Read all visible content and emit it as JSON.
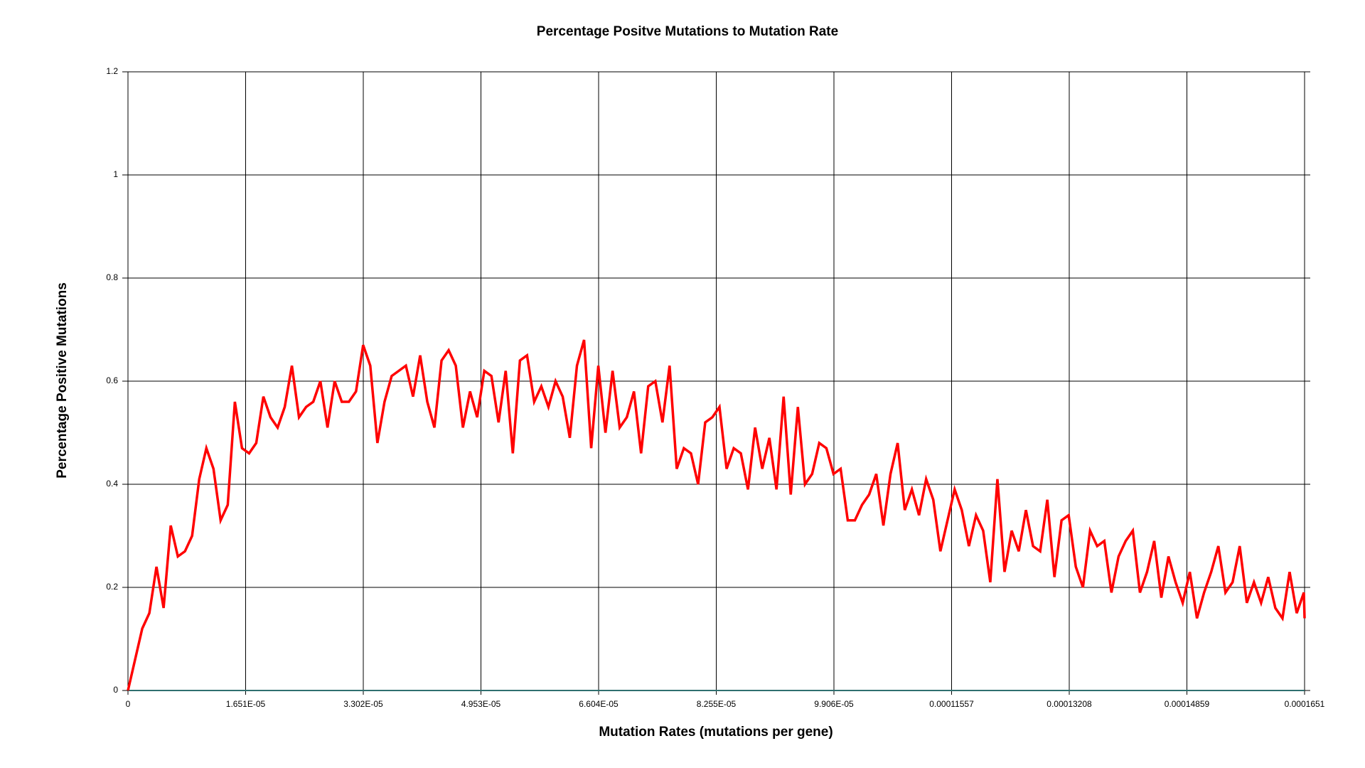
{
  "chart_data": {
    "type": "line",
    "title": "Percentage Positve Mutations to Mutation Rate",
    "x_label": "Mutation Rates (mutations per gene)",
    "y_label": "Percentage Positive Mutations",
    "x": [
      0,
      1e-06,
      2e-06,
      3e-06,
      4e-06,
      5e-06,
      6e-06,
      7e-06,
      8e-06,
      9e-06,
      1e-05,
      1.1e-05,
      1.2e-05,
      1.3e-05,
      1.4e-05,
      1.5e-05,
      1.6e-05,
      1.7e-05,
      1.8e-05,
      1.9e-05,
      2e-05,
      2.1e-05,
      2.2e-05,
      2.3e-05,
      2.4e-05,
      2.5e-05,
      2.6e-05,
      2.7e-05,
      2.8e-05,
      2.9e-05,
      3e-05,
      3.1e-05,
      3.2e-05,
      3.3e-05,
      3.4e-05,
      3.5e-05,
      3.6e-05,
      3.7e-05,
      3.8e-05,
      3.9e-05,
      4e-05,
      4.1e-05,
      4.2e-05,
      4.3e-05,
      4.4e-05,
      4.5e-05,
      4.6e-05,
      4.7e-05,
      4.8e-05,
      4.9e-05,
      5e-05,
      5.1e-05,
      5.2e-05,
      5.3e-05,
      5.4e-05,
      5.5e-05,
      5.6e-05,
      5.7e-05,
      5.8e-05,
      5.9e-05,
      6e-05,
      6.1e-05,
      6.2e-05,
      6.3e-05,
      6.4e-05,
      6.5e-05,
      6.6e-05,
      6.7e-05,
      6.8e-05,
      6.9e-05,
      7e-05,
      7.1e-05,
      7.2e-05,
      7.3e-05,
      7.4e-05,
      7.5e-05,
      7.6e-05,
      7.7e-05,
      7.8e-05,
      7.9e-05,
      8e-05,
      8.1e-05,
      8.2e-05,
      8.3e-05,
      8.4e-05,
      8.5e-05,
      8.6e-05,
      8.7e-05,
      8.8e-05,
      8.9e-05,
      9e-05,
      9.1e-05,
      9.2e-05,
      9.3e-05,
      9.4e-05,
      9.5e-05,
      9.6e-05,
      9.7e-05,
      9.8e-05,
      9.9e-05,
      0.0001,
      0.000101,
      0.000102,
      0.000103,
      0.000104,
      0.000105,
      0.000106,
      0.000107,
      0.000108,
      0.000109,
      0.00011,
      0.000111,
      0.000112,
      0.000113,
      0.000114,
      0.000115,
      0.000116,
      0.000117,
      0.000118,
      0.000119,
      0.00012,
      0.000121,
      0.000122,
      0.000123,
      0.000124,
      0.000125,
      0.000126,
      0.000127,
      0.000128,
      0.000129,
      0.00013,
      0.000131,
      0.000132,
      0.000133,
      0.000134,
      0.000135,
      0.000136,
      0.000137,
      0.000138,
      0.000139,
      0.00014,
      0.000141,
      0.000142,
      0.000143,
      0.000144,
      0.000145,
      0.000146,
      0.000147,
      0.000148,
      0.000149,
      0.00015,
      0.000151,
      0.000152,
      0.000153,
      0.000154,
      0.000155,
      0.000156,
      0.000157,
      0.000158,
      0.000159,
      0.00016,
      0.000161,
      0.000162,
      0.000163,
      0.000164,
      0.000165,
      0.0001651
    ],
    "series": [
      {
        "color": "#ff0000",
        "values": [
          0,
          0.06,
          0.12,
          0.15,
          0.24,
          0.16,
          0.32,
          0.26,
          0.27,
          0.3,
          0.41,
          0.47,
          0.43,
          0.33,
          0.36,
          0.56,
          0.47,
          0.46,
          0.48,
          0.57,
          0.53,
          0.51,
          0.55,
          0.63,
          0.53,
          0.55,
          0.56,
          0.6,
          0.51,
          0.6,
          0.56,
          0.56,
          0.58,
          0.67,
          0.63,
          0.48,
          0.56,
          0.61,
          0.62,
          0.63,
          0.57,
          0.65,
          0.56,
          0.51,
          0.64,
          0.66,
          0.63,
          0.51,
          0.58,
          0.53,
          0.62,
          0.61,
          0.52,
          0.62,
          0.46,
          0.64,
          0.65,
          0.56,
          0.59,
          0.55,
          0.6,
          0.57,
          0.49,
          0.63,
          0.68,
          0.47,
          0.63,
          0.5,
          0.62,
          0.51,
          0.53,
          0.58,
          0.46,
          0.59,
          0.6,
          0.52,
          0.63,
          0.43,
          0.47,
          0.46,
          0.4,
          0.52,
          0.53,
          0.55,
          0.43,
          0.47,
          0.46,
          0.39,
          0.51,
          0.43,
          0.49,
          0.39,
          0.57,
          0.38,
          0.55,
          0.4,
          0.42,
          0.48,
          0.47,
          0.42,
          0.43,
          0.33,
          0.33,
          0.36,
          0.38,
          0.42,
          0.32,
          0.42,
          0.48,
          0.35,
          0.39,
          0.34,
          0.41,
          0.37,
          0.27,
          0.33,
          0.39,
          0.35,
          0.28,
          0.34,
          0.31,
          0.21,
          0.41,
          0.23,
          0.31,
          0.27,
          0.35,
          0.28,
          0.27,
          0.37,
          0.22,
          0.33,
          0.34,
          0.24,
          0.2,
          0.31,
          0.28,
          0.29,
          0.19,
          0.26,
          0.29,
          0.31,
          0.19,
          0.23,
          0.29,
          0.18,
          0.26,
          0.21,
          0.17,
          0.23,
          0.14,
          0.19,
          0.23,
          0.28,
          0.19,
          0.21,
          0.28,
          0.17,
          0.21,
          0.17,
          0.22,
          0.16,
          0.14,
          0.23,
          0.15,
          0.19,
          0.14
        ]
      }
    ],
    "xlim": [
      0,
      0.0001651
    ],
    "xticks": [
      0,
      {
        "value": 1.651e-05,
        "label": "1.651E-05"
      },
      {
        "value": 3.302e-05,
        "label": "3.302E-05"
      },
      {
        "value": 4.953e-05,
        "label": "4.953E-05"
      },
      {
        "value": 6.604e-05,
        "label": "6.604E-05"
      },
      {
        "value": 8.255e-05,
        "label": "8.255E-05"
      },
      {
        "value": 9.906e-05,
        "label": "9.906E-05"
      },
      0.00011557,
      0.00013208,
      0.00014859,
      0.0001651
    ],
    "ylim": [
      0,
      1.2
    ],
    "yticks": [
      0,
      0.2,
      0.4,
      0.6,
      0.8,
      1,
      1.2
    ],
    "grid": true
  }
}
